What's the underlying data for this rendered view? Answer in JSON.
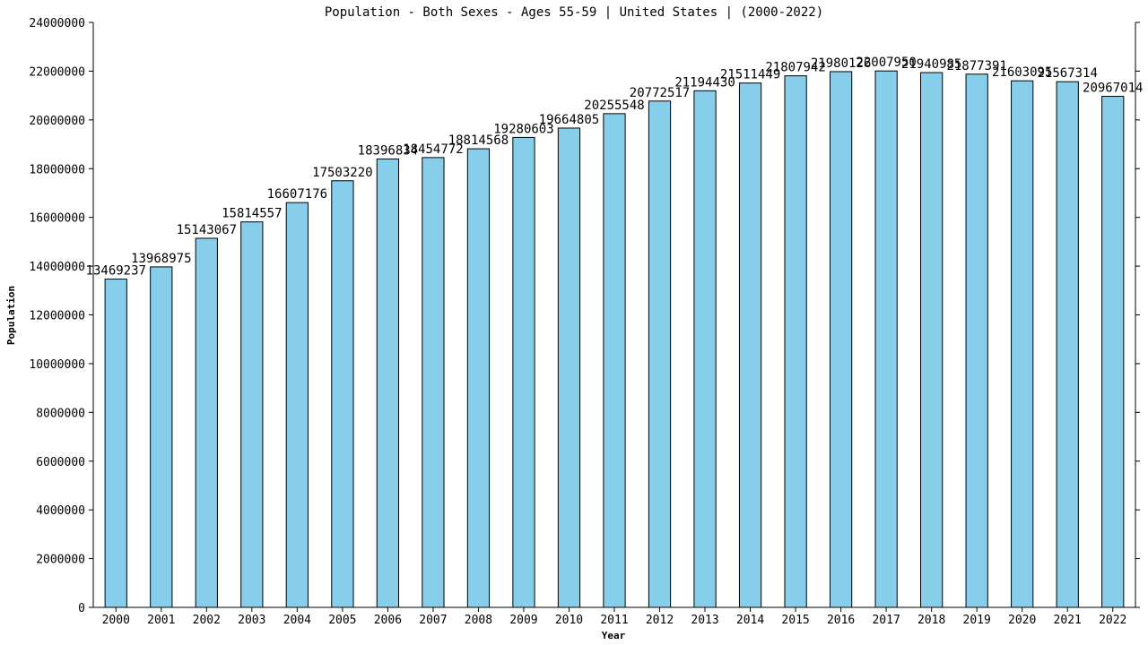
{
  "chart_data": {
    "type": "bar",
    "title": "Population - Both Sexes - Ages 55-59 | United States |  (2000-2022)",
    "xlabel": "Year",
    "ylabel": "Population",
    "ylim": [
      0,
      24000000
    ],
    "yticks": [
      0,
      2000000,
      4000000,
      6000000,
      8000000,
      10000000,
      12000000,
      14000000,
      16000000,
      18000000,
      20000000,
      22000000,
      24000000
    ],
    "categories": [
      "2000",
      "2001",
      "2002",
      "2003",
      "2004",
      "2005",
      "2006",
      "2007",
      "2008",
      "2009",
      "2010",
      "2011",
      "2012",
      "2013",
      "2014",
      "2015",
      "2016",
      "2017",
      "2018",
      "2019",
      "2020",
      "2021",
      "2022"
    ],
    "values": [
      13469237,
      13968975,
      15143067,
      15814557,
      16607176,
      17503220,
      18396834,
      18454772,
      18814568,
      19280603,
      19664805,
      20255548,
      20772517,
      21194430,
      21511449,
      21807942,
      21980126,
      22007950,
      21940985,
      21877391,
      21603095,
      21567314,
      20967014
    ],
    "bar_color": "#87ceeb",
    "grid": false,
    "legend": "none"
  }
}
